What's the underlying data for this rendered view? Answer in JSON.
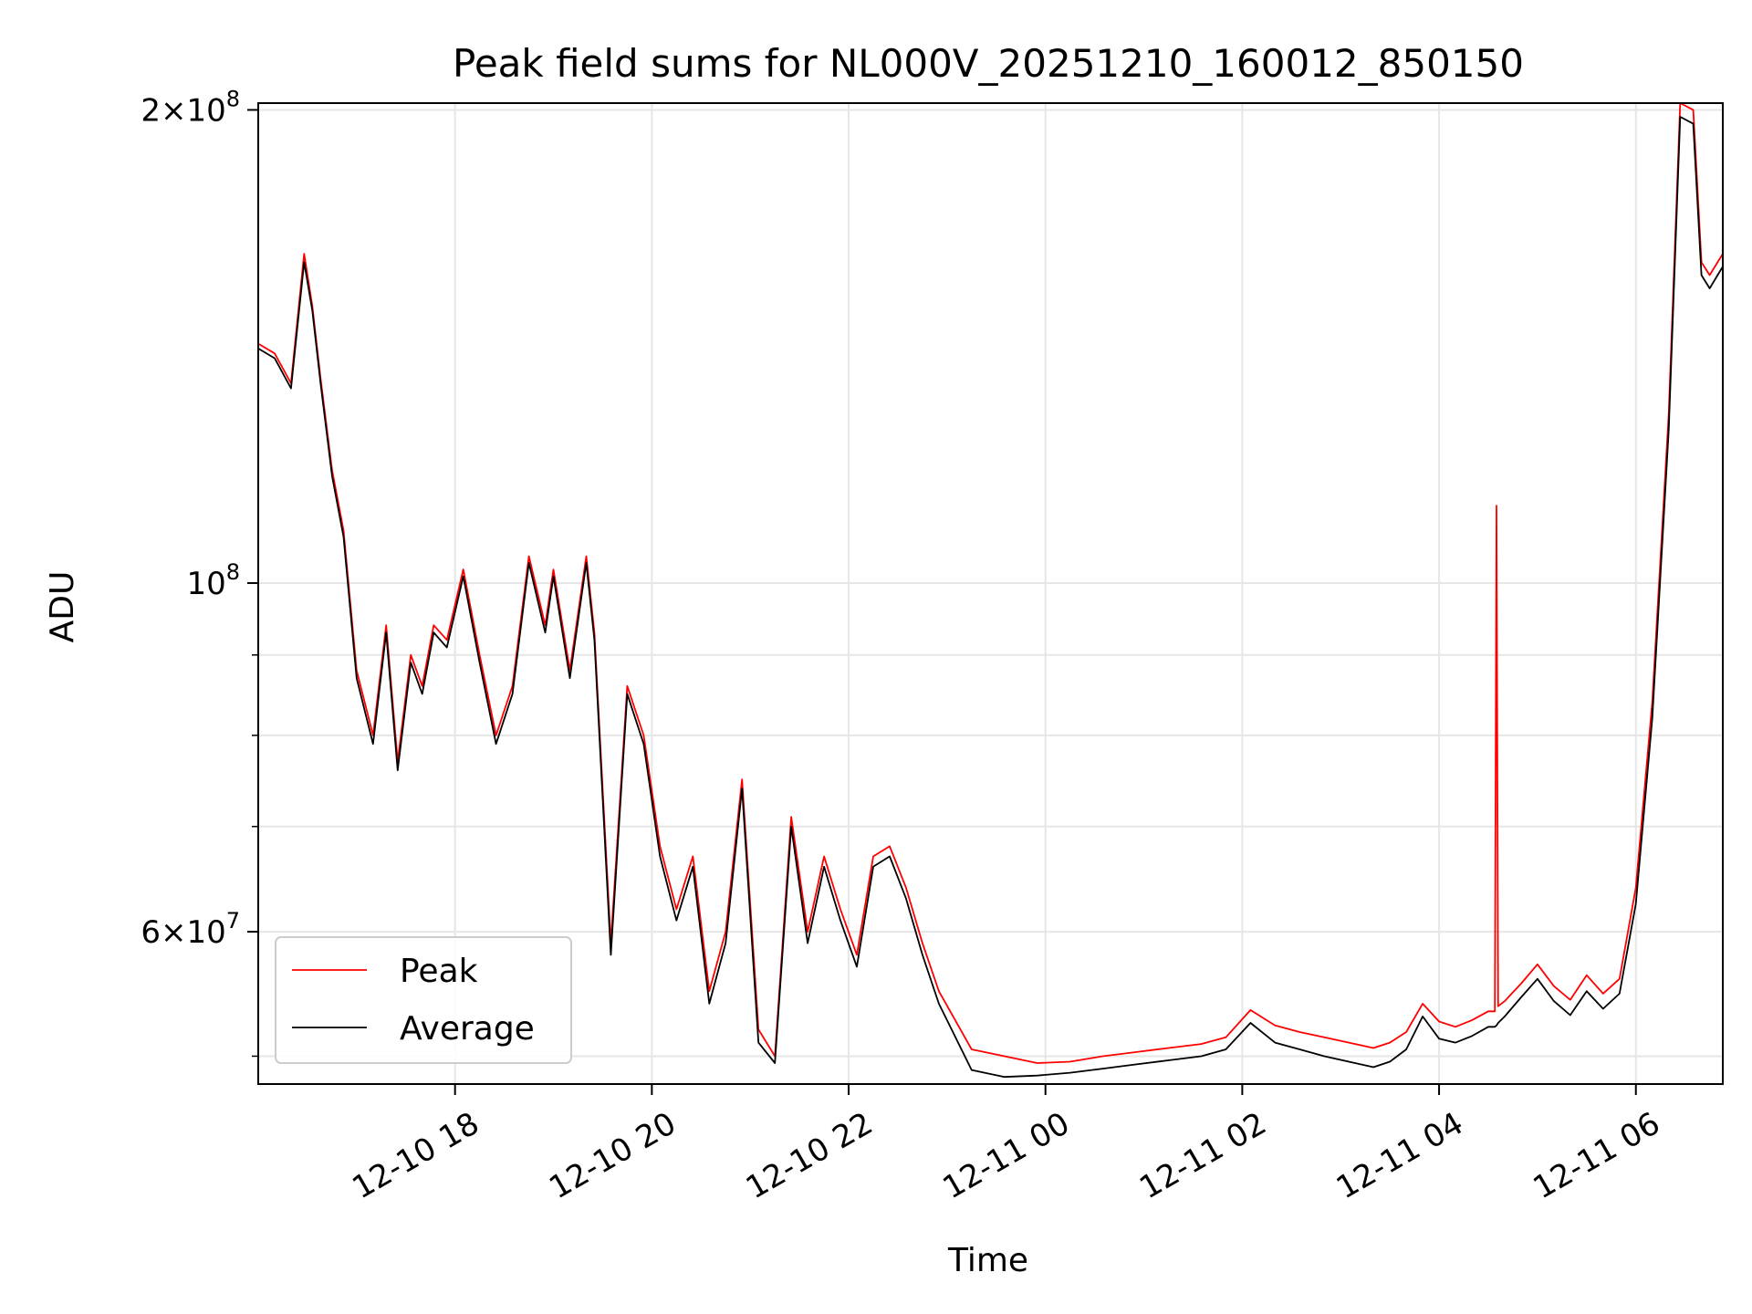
{
  "chart_data": {
    "type": "line",
    "title": "Peak field sums for NL000V_20251210_160012_850150",
    "xlabel": "Time",
    "ylabel": "ADU",
    "x_unit": "datetime",
    "xlim": [
      "2025-12-10T16:00",
      "2025-12-11T06:53"
    ],
    "ylim": [
      48000000,
      202000000
    ],
    "y_scale": "log",
    "grid": true,
    "legend_position": "lower-left",
    "x_ticks": [
      {
        "at": "2025-12-10T18:00",
        "label": "12-10 18"
      },
      {
        "at": "2025-12-10T20:00",
        "label": "12-10 20"
      },
      {
        "at": "2025-12-10T22:00",
        "label": "12-10 22"
      },
      {
        "at": "2025-12-11T00:00",
        "label": "12-11 00"
      },
      {
        "at": "2025-12-11T02:00",
        "label": "12-11 02"
      },
      {
        "at": "2025-12-11T04:00",
        "label": "12-11 04"
      },
      {
        "at": "2025-12-11T06:00",
        "label": "12-11 06"
      }
    ],
    "y_ticks": [
      {
        "value": 200000000,
        "mant": "2",
        "exp": "8"
      },
      {
        "value": 100000000,
        "mant": "",
        "exp": "8"
      },
      {
        "value": 60000000,
        "mant": "6",
        "exp": "7"
      }
    ],
    "y_minor_ticks": [
      50000000,
      70000000,
      80000000,
      90000000
    ],
    "series": [
      {
        "name": "Peak",
        "color": "#ff0000",
        "x": [
          "2025-12-10T16:00",
          "2025-12-10T16:10",
          "2025-12-10T16:20",
          "2025-12-10T16:28",
          "2025-12-10T16:33",
          "2025-12-10T16:38",
          "2025-12-10T16:45",
          "2025-12-10T16:52",
          "2025-12-10T17:00",
          "2025-12-10T17:10",
          "2025-12-10T17:18",
          "2025-12-10T17:25",
          "2025-12-10T17:33",
          "2025-12-10T17:40",
          "2025-12-10T17:47",
          "2025-12-10T17:55",
          "2025-12-10T18:05",
          "2025-12-10T18:15",
          "2025-12-10T18:25",
          "2025-12-10T18:35",
          "2025-12-10T18:45",
          "2025-12-10T18:55",
          "2025-12-10T19:00",
          "2025-12-10T19:10",
          "2025-12-10T19:20",
          "2025-12-10T19:25",
          "2025-12-10T19:35",
          "2025-12-10T19:45",
          "2025-12-10T19:55",
          "2025-12-10T20:05",
          "2025-12-10T20:15",
          "2025-12-10T20:25",
          "2025-12-10T20:35",
          "2025-12-10T20:45",
          "2025-12-10T20:55",
          "2025-12-10T21:05",
          "2025-12-10T21:15",
          "2025-12-10T21:25",
          "2025-12-10T21:35",
          "2025-12-10T21:45",
          "2025-12-10T21:55",
          "2025-12-10T22:05",
          "2025-12-10T22:15",
          "2025-12-10T22:25",
          "2025-12-10T22:35",
          "2025-12-10T22:45",
          "2025-12-10T22:55",
          "2025-12-10T23:15",
          "2025-12-10T23:35",
          "2025-12-10T23:55",
          "2025-12-11T00:15",
          "2025-12-11T00:35",
          "2025-12-11T00:55",
          "2025-12-11T01:15",
          "2025-12-11T01:35",
          "2025-12-11T01:50",
          "2025-12-11T02:05",
          "2025-12-11T02:20",
          "2025-12-11T02:35",
          "2025-12-11T02:50",
          "2025-12-11T03:05",
          "2025-12-11T03:20",
          "2025-12-11T03:30",
          "2025-12-11T03:40",
          "2025-12-11T03:50",
          "2025-12-11T04:00",
          "2025-12-11T04:10",
          "2025-12-11T04:20",
          "2025-12-11T04:30",
          "2025-12-11T04:34",
          "2025-12-11T04:35",
          "2025-12-11T04:36",
          "2025-12-11T04:40",
          "2025-12-11T04:50",
          "2025-12-11T05:00",
          "2025-12-11T05:10",
          "2025-12-11T05:20",
          "2025-12-11T05:30",
          "2025-12-11T05:40",
          "2025-12-11T05:50",
          "2025-12-11T06:00",
          "2025-12-11T06:10",
          "2025-12-11T06:20",
          "2025-12-11T06:27",
          "2025-12-11T06:35",
          "2025-12-11T06:40",
          "2025-12-11T06:45",
          "2025-12-11T06:53"
        ],
        "values": [
          142000000,
          140000000,
          134000000,
          162000000,
          150000000,
          135000000,
          118000000,
          108000000,
          88000000,
          80000000,
          94000000,
          77000000,
          90000000,
          86000000,
          94000000,
          92000000,
          102000000,
          90000000,
          80000000,
          86000000,
          104000000,
          94000000,
          102000000,
          88000000,
          104000000,
          93000000,
          59000000,
          86000000,
          80000000,
          68000000,
          62000000,
          67000000,
          55000000,
          60000000,
          75000000,
          52000000,
          50000000,
          71000000,
          60000000,
          67000000,
          62000000,
          58000000,
          67000000,
          68000000,
          64000000,
          59000000,
          55000000,
          50500000,
          50000000,
          49500000,
          49600000,
          50000000,
          50300000,
          50600000,
          50900000,
          51400000,
          53500000,
          52300000,
          51800000,
          51400000,
          51000000,
          50600000,
          51000000,
          51800000,
          54000000,
          52600000,
          52200000,
          52700000,
          53400000,
          53400000,
          112000000,
          53800000,
          54200000,
          55600000,
          57200000,
          55400000,
          54300000,
          56300000,
          54800000,
          56000000,
          64000000,
          84000000,
          128000000,
          203000000,
          200000000,
          160000000,
          157000000,
          162000000
        ]
      },
      {
        "name": "Average",
        "color": "#000000",
        "x": [
          "2025-12-10T16:00",
          "2025-12-10T16:10",
          "2025-12-10T16:20",
          "2025-12-10T16:28",
          "2025-12-10T16:33",
          "2025-12-10T16:38",
          "2025-12-10T16:45",
          "2025-12-10T16:52",
          "2025-12-10T17:00",
          "2025-12-10T17:10",
          "2025-12-10T17:18",
          "2025-12-10T17:25",
          "2025-12-10T17:33",
          "2025-12-10T17:40",
          "2025-12-10T17:47",
          "2025-12-10T17:55",
          "2025-12-10T18:05",
          "2025-12-10T18:15",
          "2025-12-10T18:25",
          "2025-12-10T18:35",
          "2025-12-10T18:45",
          "2025-12-10T18:55",
          "2025-12-10T19:00",
          "2025-12-10T19:10",
          "2025-12-10T19:20",
          "2025-12-10T19:25",
          "2025-12-10T19:35",
          "2025-12-10T19:45",
          "2025-12-10T19:55",
          "2025-12-10T20:05",
          "2025-12-10T20:15",
          "2025-12-10T20:25",
          "2025-12-10T20:35",
          "2025-12-10T20:45",
          "2025-12-10T20:55",
          "2025-12-10T21:05",
          "2025-12-10T21:15",
          "2025-12-10T21:25",
          "2025-12-10T21:35",
          "2025-12-10T21:45",
          "2025-12-10T21:55",
          "2025-12-10T22:05",
          "2025-12-10T22:15",
          "2025-12-10T22:25",
          "2025-12-10T22:35",
          "2025-12-10T22:45",
          "2025-12-10T22:55",
          "2025-12-10T23:15",
          "2025-12-10T23:35",
          "2025-12-10T23:55",
          "2025-12-11T00:15",
          "2025-12-11T00:35",
          "2025-12-11T00:55",
          "2025-12-11T01:15",
          "2025-12-11T01:35",
          "2025-12-11T01:50",
          "2025-12-11T02:05",
          "2025-12-11T02:20",
          "2025-12-11T02:35",
          "2025-12-11T02:50",
          "2025-12-11T03:05",
          "2025-12-11T03:20",
          "2025-12-11T03:30",
          "2025-12-11T03:40",
          "2025-12-11T03:50",
          "2025-12-11T04:00",
          "2025-12-11T04:10",
          "2025-12-11T04:20",
          "2025-12-11T04:30",
          "2025-12-11T04:34",
          "2025-12-11T04:35",
          "2025-12-11T04:36",
          "2025-12-11T04:40",
          "2025-12-11T04:50",
          "2025-12-11T05:00",
          "2025-12-11T05:10",
          "2025-12-11T05:20",
          "2025-12-11T05:30",
          "2025-12-11T05:40",
          "2025-12-11T05:50",
          "2025-12-11T06:00",
          "2025-12-11T06:10",
          "2025-12-11T06:20",
          "2025-12-11T06:27",
          "2025-12-11T06:35",
          "2025-12-11T06:40",
          "2025-12-11T06:45",
          "2025-12-11T06:53"
        ],
        "values": [
          141000000,
          139000000,
          133000000,
          160000000,
          149000000,
          134000000,
          117000000,
          107000000,
          87000000,
          79000000,
          93000000,
          76000000,
          89000000,
          85000000,
          93000000,
          91000000,
          101000000,
          89000000,
          79000000,
          85000000,
          103000000,
          93000000,
          101000000,
          87000000,
          103000000,
          92000000,
          58000000,
          85000000,
          79000000,
          67000000,
          61000000,
          66000000,
          54000000,
          59000000,
          74000000,
          51000000,
          49500000,
          70000000,
          59000000,
          66000000,
          61000000,
          57000000,
          66000000,
          67000000,
          63000000,
          58000000,
          54000000,
          49000000,
          48500000,
          48600000,
          48800000,
          49100000,
          49400000,
          49700000,
          50000000,
          50500000,
          52500000,
          51000000,
          50500000,
          50000000,
          49600000,
          49200000,
          49600000,
          50500000,
          53000000,
          51300000,
          51000000,
          51500000,
          52200000,
          52200000,
          52300000,
          52500000,
          53000000,
          54500000,
          56000000,
          54200000,
          53100000,
          55000000,
          53600000,
          54800000,
          62500000,
          82000000,
          125000000,
          198000000,
          196000000,
          157000000,
          154000000,
          159000000
        ]
      }
    ]
  }
}
